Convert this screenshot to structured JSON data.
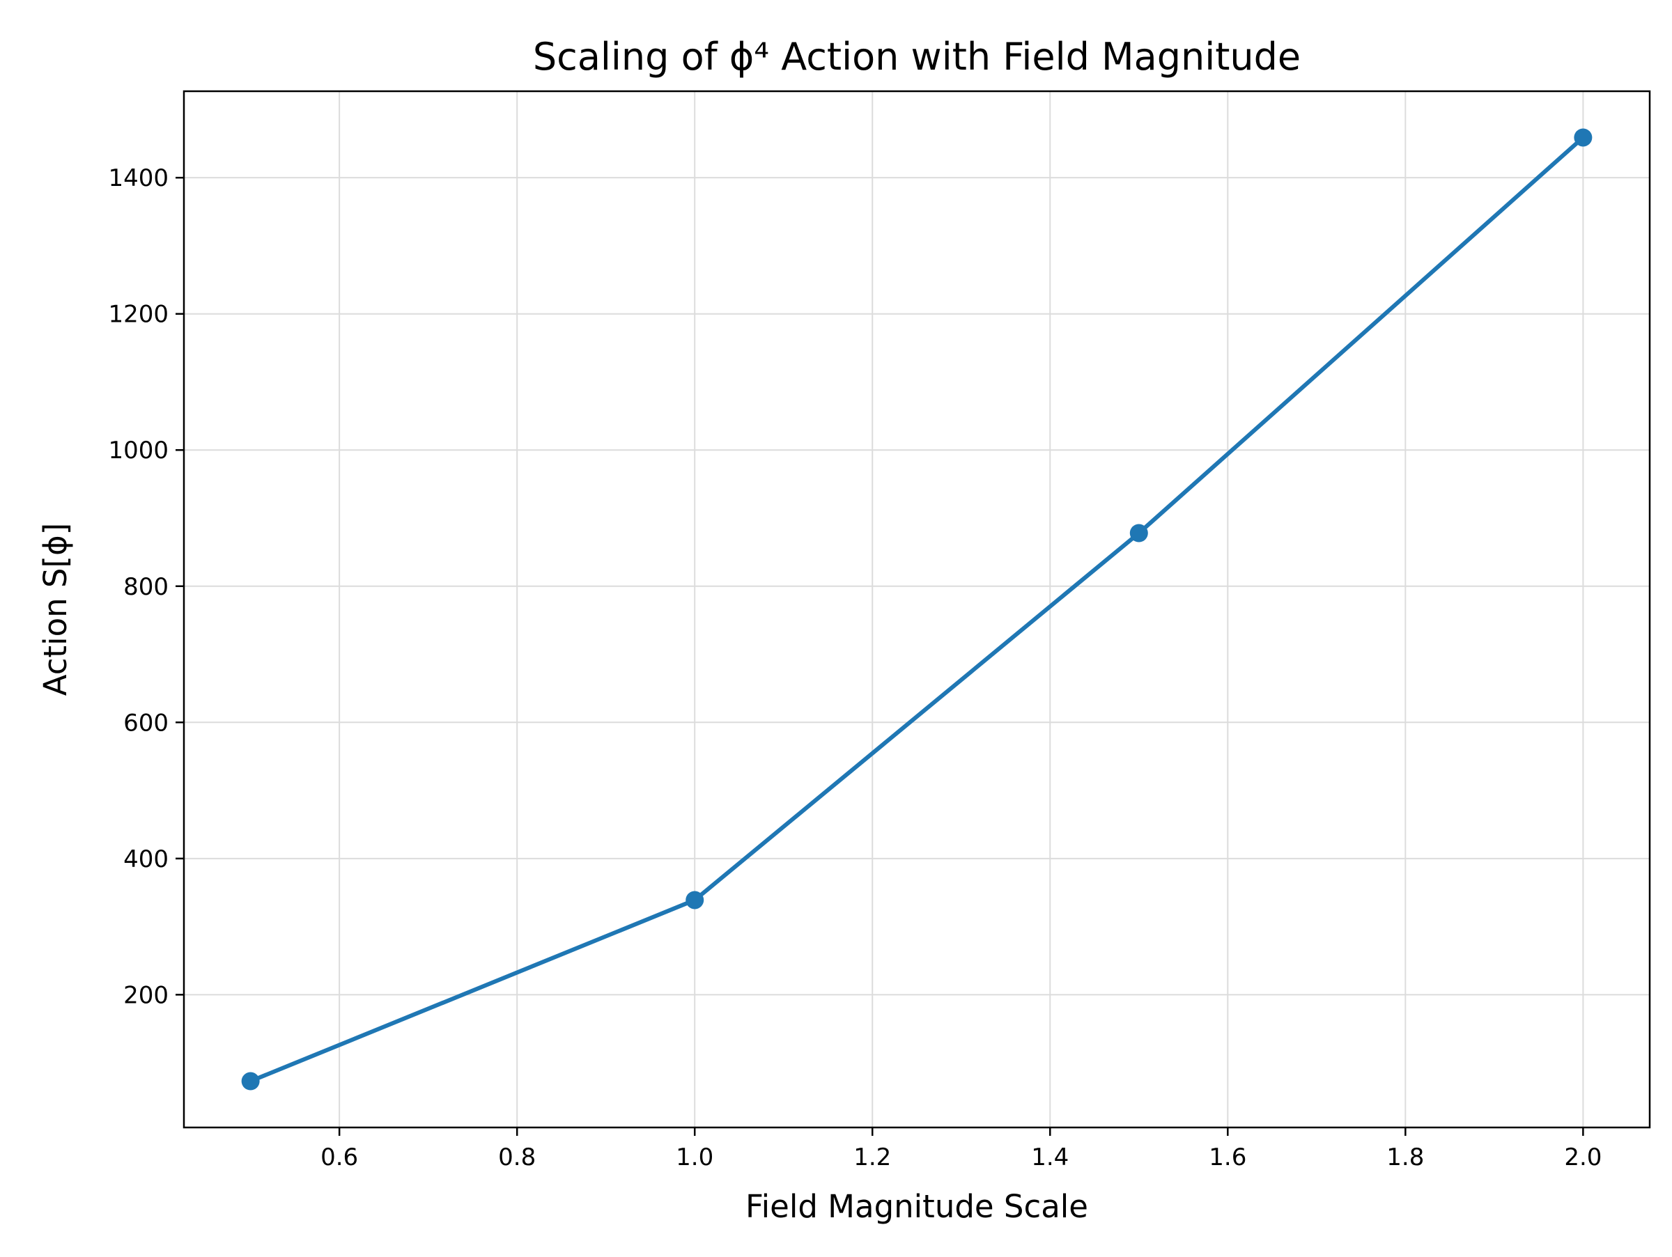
{
  "chart_data": {
    "type": "line",
    "title": "Scaling of ϕ⁴ Action with Field Magnitude",
    "xlabel": "Field Magnitude Scale",
    "ylabel": "Action S[ϕ]",
    "x": [
      0.5,
      1.0,
      1.5,
      2.0
    ],
    "series": [
      {
        "values": [
          73,
          339,
          878,
          1459
        ]
      }
    ],
    "xlim": [
      0.425,
      2.075
    ],
    "ylim": [
      5,
      1527
    ],
    "xticks": [
      0.6,
      0.8,
      1.0,
      1.2,
      1.4,
      1.6,
      1.8,
      2.0
    ],
    "xtick_labels": [
      "0.6",
      "0.8",
      "1.0",
      "1.2",
      "1.4",
      "1.6",
      "1.8",
      "2.0"
    ],
    "yticks": [
      200,
      400,
      600,
      800,
      1000,
      1200,
      1400
    ],
    "ytick_labels": [
      "200",
      "400",
      "600",
      "800",
      "1000",
      "1200",
      "1400"
    ],
    "grid": true,
    "line_color": "#1f77b4",
    "marker": "circle"
  }
}
